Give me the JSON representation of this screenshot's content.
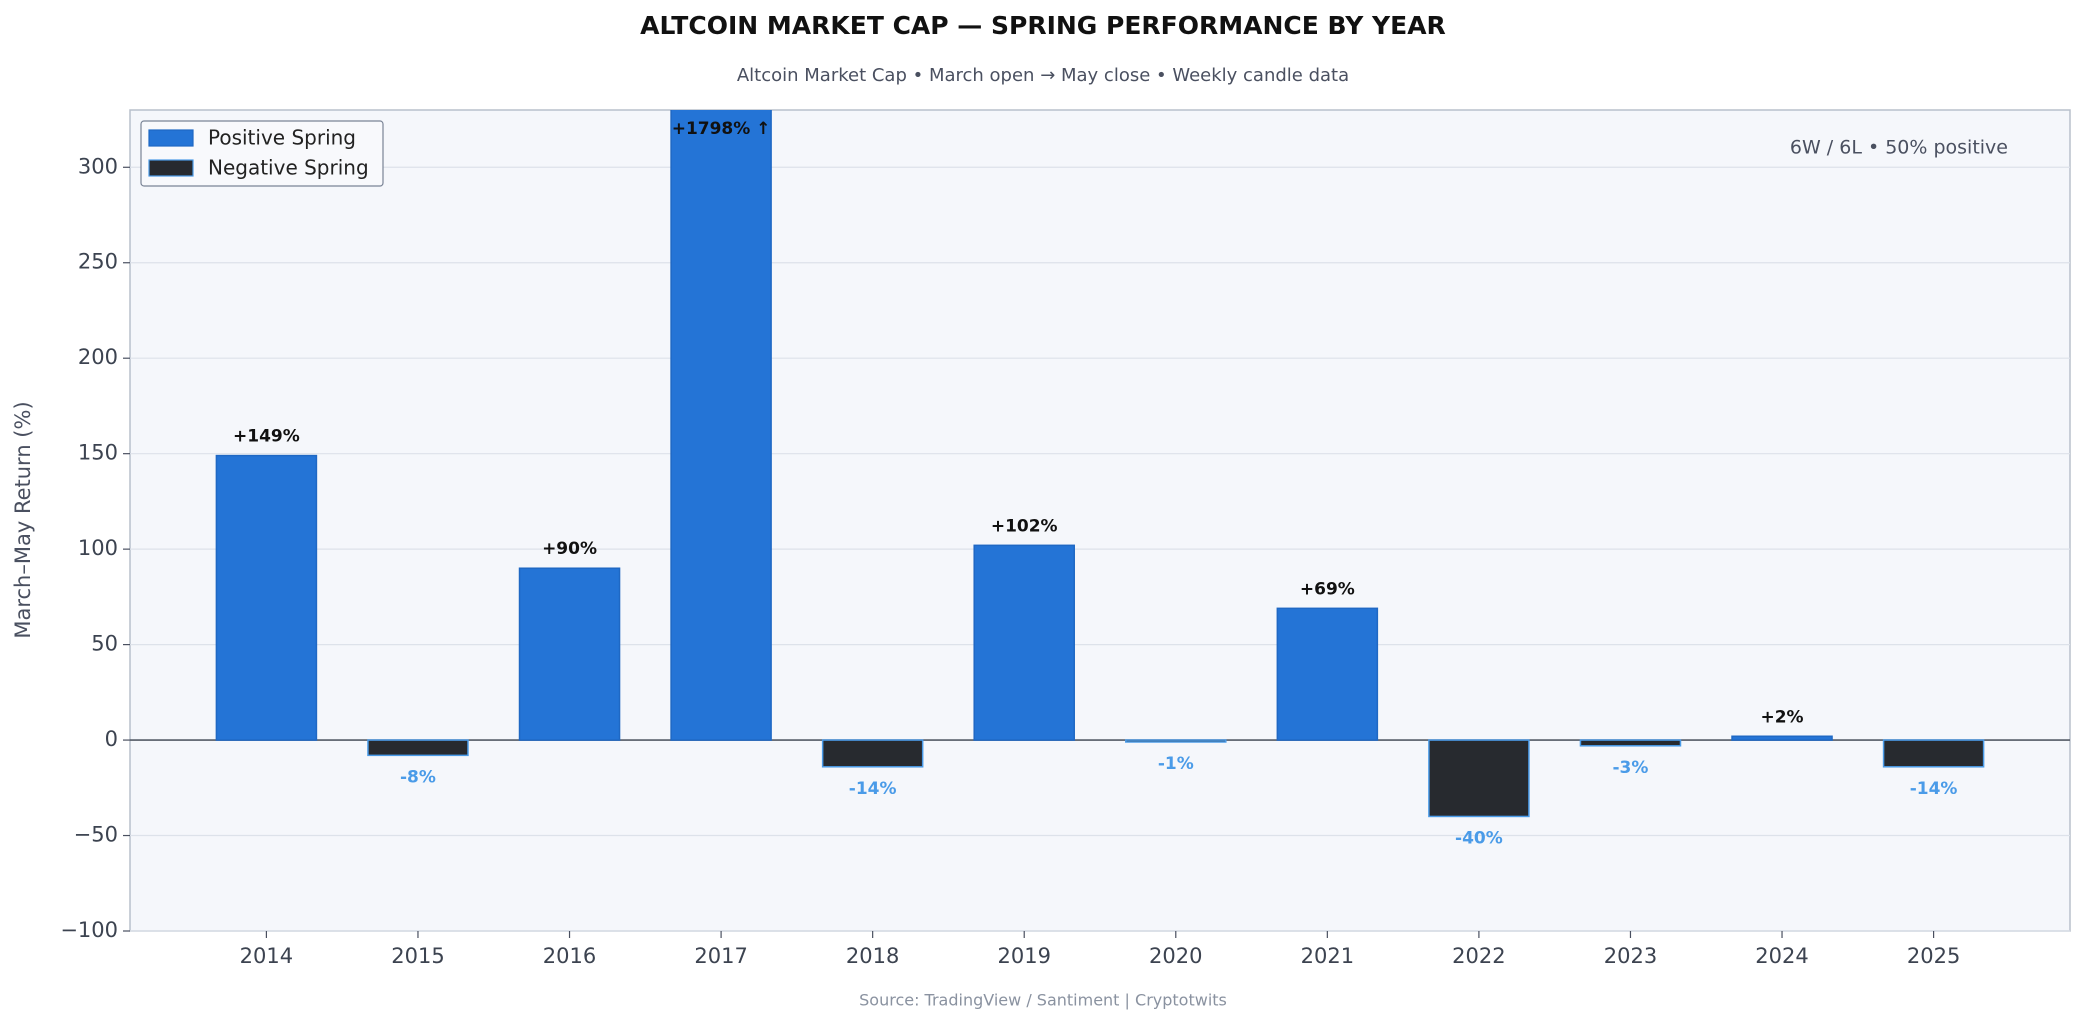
{
  "chart_data": {
    "type": "bar",
    "title": "ALTCOIN MARKET CAP — SPRING PERFORMANCE BY YEAR",
    "subtitle": "Altcoin Market Cap  •  March open → May close  •  Weekly candle data",
    "y_label": "March–May Return (%)",
    "annotation": "6W / 6L  •  50% positive",
    "source": "Source: TradingView / Santiment  |  Cryptotwits",
    "categories": [
      "2014",
      "2015",
      "2016",
      "2017",
      "2018",
      "2019",
      "2020",
      "2021",
      "2022",
      "2023",
      "2024",
      "2025"
    ],
    "values": [
      149,
      -8,
      90,
      1798,
      -14,
      102,
      -1,
      69,
      -40,
      -3,
      2,
      -14
    ],
    "value_labels": [
      "+149%",
      "-8%",
      "+90%",
      "+1798%  ↑",
      "-14%",
      "+102%",
      "-1%",
      "+69%",
      "-40%",
      "-3%",
      "+2%",
      "-14%"
    ],
    "legend": [
      {
        "name": "Positive Spring",
        "color": "#2474d6"
      },
      {
        "name": "Negative Spring",
        "color": "#272a2f"
      }
    ],
    "negative_edge_color": "#4a9be8",
    "ylim": [
      -100,
      330
    ],
    "yticks": [
      {
        "value": -100,
        "label": "−100"
      },
      {
        "value": -50,
        "label": "−50"
      },
      0,
      50,
      100,
      150,
      200,
      250,
      300
    ],
    "grid": true,
    "legend_position": "upper left"
  }
}
